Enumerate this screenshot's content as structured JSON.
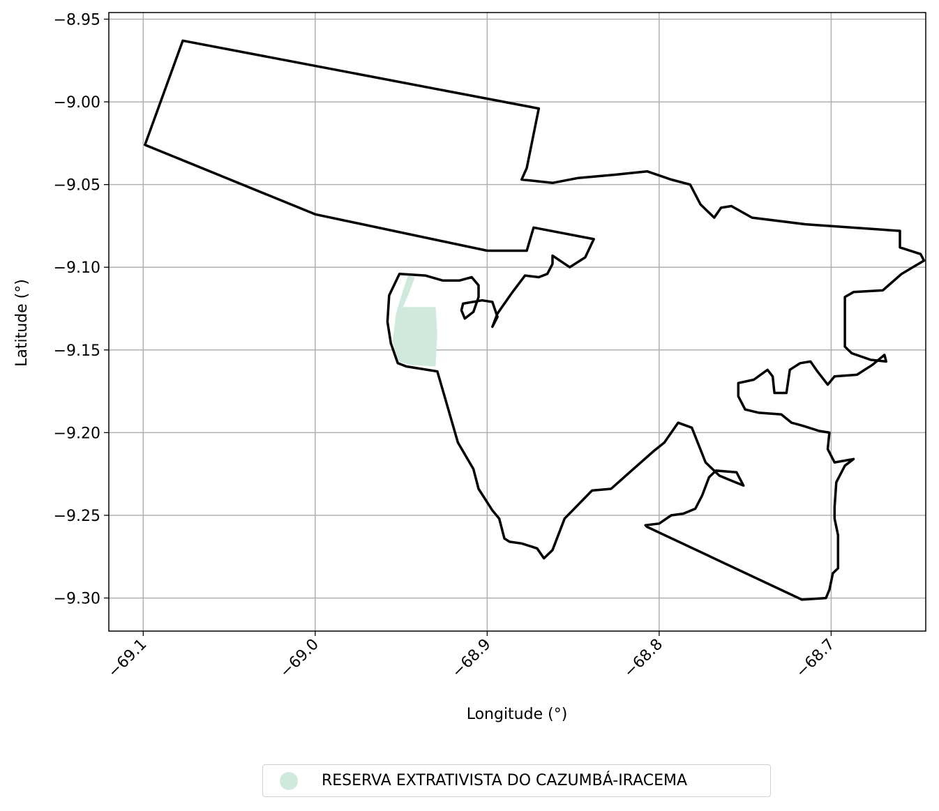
{
  "colors": {
    "reserve_fill": "#cfeadd",
    "boundary": "#000000",
    "grid": "#b0b0b0",
    "legend_border": "#d0d0d0"
  },
  "chart_data": {
    "type": "map",
    "xlabel": "Longitude (°)",
    "ylabel": "Latitude (°)",
    "xlim": [
      -69.12,
      -68.645
    ],
    "ylim": [
      -9.32,
      -8.946
    ],
    "x_ticks": [
      -69.1,
      -69.0,
      -68.9,
      -68.8,
      -68.7
    ],
    "x_tick_labels": [
      "−69.1",
      "−69.0",
      "−68.9",
      "−68.8",
      "−68.7"
    ],
    "y_ticks": [
      -8.95,
      -9.0,
      -9.05,
      -9.1,
      -9.15,
      -9.2,
      -9.25,
      -9.3
    ],
    "y_tick_labels": [
      "−8.95",
      "−9.00",
      "−9.05",
      "−9.10",
      "−9.15",
      "−9.20",
      "−9.25",
      "−9.30"
    ],
    "grid": true,
    "legend_position": "bottom-center",
    "legend": [
      {
        "label": "RESERVA EXTRATIVISTA DO CAZUMBÁ-IRACEMA",
        "marker": "circle",
        "color": "#cfeadd"
      }
    ],
    "filled_area": {
      "name": "RESERVA EXTRATIVISTA DO CAZUMBÁ-IRACEMA",
      "coordinates": [
        [
          -68.942,
          -9.106
        ],
        [
          -68.946,
          -9.117
        ],
        [
          -68.949,
          -9.124
        ],
        [
          -68.938,
          -9.124
        ],
        [
          -68.93,
          -9.124
        ],
        [
          -68.929,
          -9.14
        ],
        [
          -68.93,
          -9.16
        ],
        [
          -68.945,
          -9.159
        ],
        [
          -68.952,
          -9.157
        ],
        [
          -68.955,
          -9.145
        ],
        [
          -68.953,
          -9.128
        ],
        [
          -68.949,
          -9.114
        ],
        [
          -68.946,
          -9.105
        ]
      ]
    },
    "boundary": {
      "coordinates": [
        [
          -69.077,
          -8.963
        ],
        [
          -68.87,
          -9.004
        ],
        [
          -68.877,
          -9.04
        ],
        [
          -68.88,
          -9.047
        ],
        [
          -68.862,
          -9.049
        ],
        [
          -68.847,
          -9.046
        ],
        [
          -68.825,
          -9.044
        ],
        [
          -68.807,
          -9.042
        ],
        [
          -68.793,
          -9.047
        ],
        [
          -68.782,
          -9.05
        ],
        [
          -68.776,
          -9.062
        ],
        [
          -68.768,
          -9.07
        ],
        [
          -68.764,
          -9.064
        ],
        [
          -68.758,
          -9.063
        ],
        [
          -68.746,
          -9.07
        ],
        [
          -68.715,
          -9.074
        ],
        [
          -68.66,
          -9.078
        ],
        [
          -68.66,
          -9.088
        ],
        [
          -68.648,
          -9.092
        ],
        [
          -68.646,
          -9.096
        ],
        [
          -68.659,
          -9.104
        ],
        [
          -68.67,
          -9.114
        ],
        [
          -68.687,
          -9.115
        ],
        [
          -68.692,
          -9.118
        ],
        [
          -68.692,
          -9.148
        ],
        [
          -68.688,
          -9.152
        ],
        [
          -68.677,
          -9.156
        ],
        [
          -68.668,
          -9.157
        ],
        [
          -68.669,
          -9.153
        ],
        [
          -68.676,
          -9.159
        ],
        [
          -68.685,
          -9.165
        ],
        [
          -68.698,
          -9.166
        ],
        [
          -68.702,
          -9.171
        ],
        [
          -68.708,
          -9.163
        ],
        [
          -68.712,
          -9.157
        ],
        [
          -68.718,
          -9.158
        ],
        [
          -68.724,
          -9.162
        ],
        [
          -68.726,
          -9.176
        ],
        [
          -68.733,
          -9.176
        ],
        [
          -68.734,
          -9.166
        ],
        [
          -68.737,
          -9.162
        ],
        [
          -68.745,
          -9.168
        ],
        [
          -68.754,
          -9.17
        ],
        [
          -68.754,
          -9.178
        ],
        [
          -68.75,
          -9.186
        ],
        [
          -68.742,
          -9.188
        ],
        [
          -68.729,
          -9.189
        ],
        [
          -68.723,
          -9.194
        ],
        [
          -68.716,
          -9.196
        ],
        [
          -68.707,
          -9.199
        ],
        [
          -68.701,
          -9.2
        ],
        [
          -68.702,
          -9.21
        ],
        [
          -68.698,
          -9.218
        ],
        [
          -68.687,
          -9.216
        ],
        [
          -68.692,
          -9.22
        ],
        [
          -68.697,
          -9.23
        ],
        [
          -68.698,
          -9.245
        ],
        [
          -68.698,
          -9.252
        ],
        [
          -68.696,
          -9.262
        ],
        [
          -68.696,
          -9.282
        ],
        [
          -68.699,
          -9.285
        ],
        [
          -68.701,
          -9.295
        ],
        [
          -68.703,
          -9.3
        ],
        [
          -68.717,
          -9.301
        ],
        [
          -68.807,
          -9.257
        ],
        [
          -68.808,
          -9.256
        ],
        [
          -68.8,
          -9.255
        ],
        [
          -68.793,
          -9.25
        ],
        [
          -68.786,
          -9.249
        ],
        [
          -68.779,
          -9.246
        ],
        [
          -68.775,
          -9.238
        ],
        [
          -68.771,
          -9.227
        ],
        [
          -68.767,
          -9.223
        ],
        [
          -68.755,
          -9.224
        ],
        [
          -68.751,
          -9.232
        ],
        [
          -68.758,
          -9.229
        ],
        [
          -68.765,
          -9.226
        ],
        [
          -68.773,
          -9.218
        ],
        [
          -68.781,
          -9.197
        ],
        [
          -68.789,
          -9.194
        ],
        [
          -68.797,
          -9.206
        ],
        [
          -68.803,
          -9.211
        ],
        [
          -68.815,
          -9.222
        ],
        [
          -68.828,
          -9.234
        ],
        [
          -68.839,
          -9.235
        ],
        [
          -68.855,
          -9.252
        ],
        [
          -68.862,
          -9.271
        ],
        [
          -68.867,
          -9.276
        ],
        [
          -68.871,
          -9.27
        ],
        [
          -68.88,
          -9.267
        ],
        [
          -68.887,
          -9.266
        ],
        [
          -68.89,
          -9.264
        ],
        [
          -68.893,
          -9.252
        ],
        [
          -68.897,
          -9.247
        ],
        [
          -68.905,
          -9.234
        ],
        [
          -68.908,
          -9.222
        ],
        [
          -68.917,
          -9.206
        ],
        [
          -68.929,
          -9.163
        ],
        [
          -68.947,
          -9.16
        ],
        [
          -68.952,
          -9.158
        ],
        [
          -68.956,
          -9.146
        ],
        [
          -68.958,
          -9.133
        ],
        [
          -68.957,
          -9.117
        ],
        [
          -68.951,
          -9.104
        ],
        [
          -68.936,
          -9.105
        ],
        [
          -68.926,
          -9.108
        ],
        [
          -68.916,
          -9.108
        ],
        [
          -68.909,
          -9.106
        ],
        [
          -68.905,
          -9.111
        ],
        [
          -68.905,
          -9.118
        ],
        [
          -68.908,
          -9.127
        ],
        [
          -68.913,
          -9.131
        ],
        [
          -68.915,
          -9.126
        ],
        [
          -68.914,
          -9.122
        ],
        [
          -68.903,
          -9.12
        ],
        [
          -68.897,
          -9.121
        ],
        [
          -68.894,
          -9.13
        ],
        [
          -68.897,
          -9.136
        ],
        [
          -68.894,
          -9.128
        ],
        [
          -68.886,
          -9.116
        ],
        [
          -68.878,
          -9.105
        ],
        [
          -68.87,
          -9.106
        ],
        [
          -68.865,
          -9.104
        ],
        [
          -68.862,
          -9.098
        ],
        [
          -68.862,
          -9.093
        ],
        [
          -68.852,
          -9.1
        ],
        [
          -68.843,
          -9.094
        ],
        [
          -68.838,
          -9.083
        ],
        [
          -68.873,
          -9.076
        ],
        [
          -68.877,
          -9.09
        ],
        [
          -68.9,
          -9.09
        ],
        [
          -69.0,
          -9.068
        ],
        [
          -69.099,
          -9.026
        ],
        [
          -69.077,
          -8.963
        ]
      ]
    }
  }
}
